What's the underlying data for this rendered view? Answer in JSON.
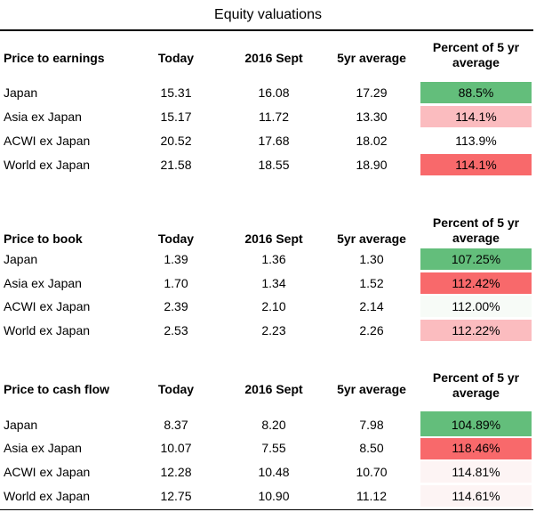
{
  "title": "Equity valuations",
  "columns": {
    "today": "Today",
    "sept": "2016 Sept",
    "avg": "5yr average",
    "pct": "Percent of 5 yr average"
  },
  "colors": {
    "green": "#63be7b",
    "light_red": "#fbbcbf",
    "red": "#f8696b",
    "pale": "#fdf4f4",
    "faint_green": "#f7fbf7"
  },
  "sections": [
    {
      "label": "Price to earnings",
      "rows": [
        {
          "name": "Japan",
          "today": "15.31",
          "sept": "16.08",
          "avg": "17.29",
          "pct": "88.5%",
          "color": "#63be7b"
        },
        {
          "name": "Asia ex Japan",
          "today": "15.17",
          "sept": "11.72",
          "avg": "13.30",
          "pct": "114.1%",
          "color": "#fbbcbf"
        },
        {
          "name": "ACWI ex Japan",
          "today": "20.52",
          "sept": "17.68",
          "avg": "18.02",
          "pct": "113.9%",
          "color": ""
        },
        {
          "name": "World ex Japan",
          "today": "21.58",
          "sept": "18.55",
          "avg": "18.90",
          "pct": "114.1%",
          "color": "#f8696b"
        }
      ]
    },
    {
      "label": "Price to book",
      "rows": [
        {
          "name": "Japan",
          "today": "1.39",
          "sept": "1.36",
          "avg": "1.30",
          "pct": "107.25%",
          "color": "#63be7b"
        },
        {
          "name": "Asia ex Japan",
          "today": "1.70",
          "sept": "1.34",
          "avg": "1.52",
          "pct": "112.42%",
          "color": "#f8696b"
        },
        {
          "name": "ACWI ex Japan",
          "today": "2.39",
          "sept": "2.10",
          "avg": "2.14",
          "pct": "112.00%",
          "color": "#f7fbf7"
        },
        {
          "name": "World ex Japan",
          "today": "2.53",
          "sept": "2.23",
          "avg": "2.26",
          "pct": "112.22%",
          "color": "#fbbcbf"
        }
      ]
    },
    {
      "label": "Price to cash flow",
      "rows": [
        {
          "name": "Japan",
          "today": "8.37",
          "sept": "8.20",
          "avg": "7.98",
          "pct": "104.89%",
          "color": "#63be7b"
        },
        {
          "name": "Asia ex Japan",
          "today": "10.07",
          "sept": "7.55",
          "avg": "8.50",
          "pct": "118.46%",
          "color": "#f8696b"
        },
        {
          "name": "ACWI ex Japan",
          "today": "12.28",
          "sept": "10.48",
          "avg": "10.70",
          "pct": "114.81%",
          "color": "#fdf4f4"
        },
        {
          "name": "World ex Japan",
          "today": "12.75",
          "sept": "10.90",
          "avg": "11.12",
          "pct": "114.61%",
          "color": "#fdf4f4"
        }
      ]
    }
  ]
}
